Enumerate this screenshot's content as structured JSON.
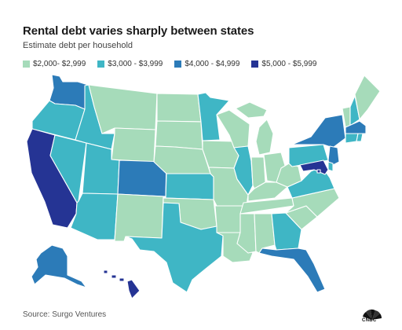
{
  "title": "Rental debt varies sharply between states",
  "subtitle": "Estimate debt per household",
  "source": "Source: Surgo Ventures",
  "logo_text": "CNBC",
  "legend": [
    {
      "label": "$2,000- $2,999",
      "color": "#a6dbba"
    },
    {
      "label": "$3,000 - $3,999",
      "color": "#3fb6c5"
    },
    {
      "label": "$4,000 - $4,999",
      "color": "#2c7bb8"
    },
    {
      "label": "$5,000 - $5,999",
      "color": "#253494"
    }
  ],
  "states": {
    "WA": 2,
    "OR": 1,
    "CA": 3,
    "NV": 1,
    "ID": 1,
    "MT": 0,
    "WY": 0,
    "UT": 1,
    "AZ": 1,
    "CO": 2,
    "NM": 0,
    "ND": 0,
    "SD": 0,
    "NE": 0,
    "KS": 1,
    "OK": 0,
    "TX": 1,
    "MN": 1,
    "IA": 0,
    "MO": 0,
    "AR": 0,
    "LA": 0,
    "WI": 0,
    "IL": 1,
    "MI": 0,
    "IN": 0,
    "OH": 0,
    "KY": 0,
    "TN": 0,
    "MS": 0,
    "AL": 0,
    "GA": 1,
    "FL": 2,
    "SC": 0,
    "NC": 0,
    "VA": 1,
    "WV": 0,
    "PA": 1,
    "NY": 2,
    "VT": 0,
    "NH": 1,
    "ME": 0,
    "MA": 2,
    "RI": 1,
    "CT": 1,
    "NJ": 2,
    "DE": 1,
    "MD": 3,
    "DC": 3,
    "AK": 2,
    "HI": 3
  }
}
